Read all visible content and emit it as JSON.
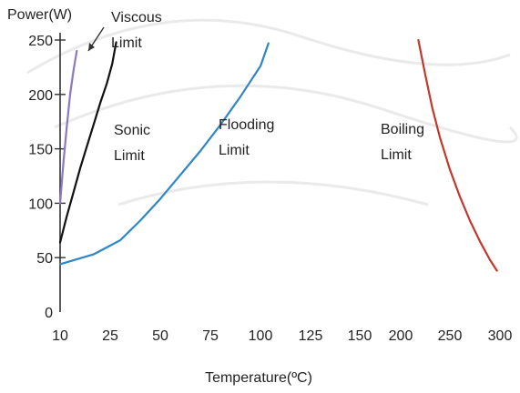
{
  "chart_data": {
    "type": "line",
    "title": "",
    "ylabel": "Power(W)",
    "xlabel": "Temperature(ºC)",
    "x_ticks": [
      10,
      25,
      50,
      75,
      100,
      125,
      150,
      200,
      250,
      300
    ],
    "y_ticks": [
      0,
      50,
      100,
      150,
      200,
      250
    ],
    "ylim": [
      0,
      250
    ],
    "grid": false,
    "legend": "none",
    "series": [
      {
        "name": "Viscous Limit",
        "color": "#8a78c2",
        "label_lines": [
          "Viscous",
          "Limit"
        ],
        "x": [
          10,
          11,
          12,
          13,
          14,
          15
        ],
        "y": [
          100,
          138,
          170,
          200,
          222,
          240
        ]
      },
      {
        "name": "Sonic Limit",
        "color": "#111111",
        "label_lines": [
          "Sonic",
          "Limit"
        ],
        "x": [
          10,
          12,
          14,
          16,
          18,
          20,
          22,
          24,
          26,
          28
        ],
        "y": [
          64,
          88,
          110,
          132,
          152,
          172,
          192,
          210,
          228,
          248
        ]
      },
      {
        "name": "Flooding Limit",
        "color": "#2f86c6",
        "label_lines": [
          "Flooding",
          "Limit"
        ],
        "x": [
          10,
          20,
          30,
          40,
          50,
          60,
          70,
          80,
          90,
          100,
          104
        ],
        "y": [
          44,
          53,
          66,
          84,
          104,
          126,
          148,
          172,
          198,
          226,
          247
        ]
      },
      {
        "name": "Boiling Limit",
        "color": "#c0392b",
        "label_lines": [
          "Boiling",
          "Limit"
        ],
        "x": [
          218,
          225,
          232,
          240,
          250,
          260,
          270,
          280,
          290,
          297
        ],
        "y": [
          250,
          218,
          188,
          160,
          131,
          106,
          84,
          65,
          48,
          38
        ]
      }
    ]
  }
}
